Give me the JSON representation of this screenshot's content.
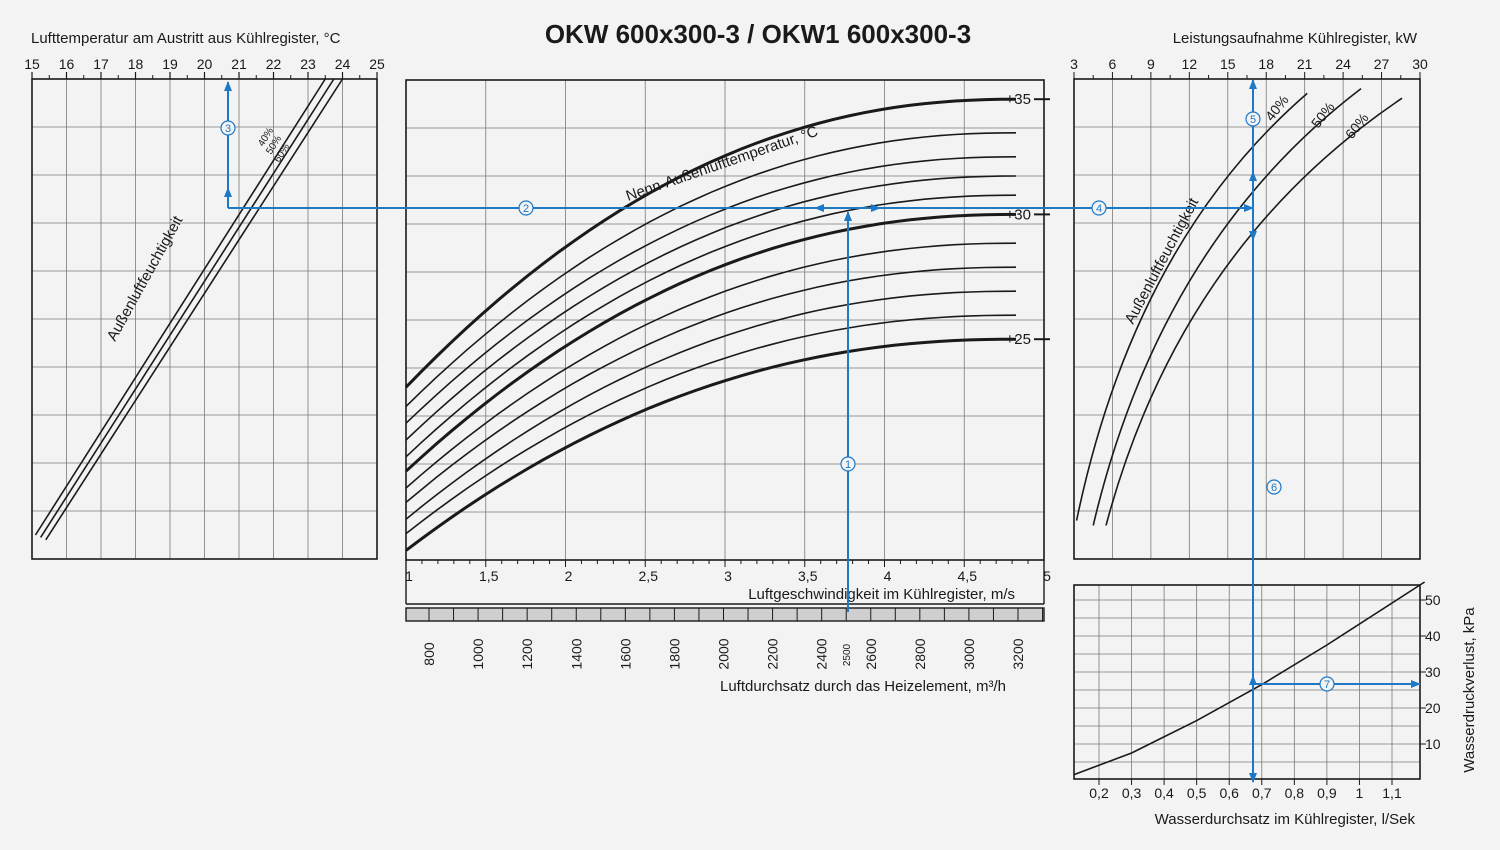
{
  "title": "OKW 600x300-3 / OKW1 600x300-3",
  "colors": {
    "flow": "#1e78c8",
    "lines": "#1a1a1a",
    "grid": "#7a7a7a",
    "background": "#f3f3f3"
  },
  "chart_data": [
    {
      "id": "outlet_temp",
      "type": "line",
      "title": "",
      "xlabel": "Lufttemperatur am Austritt aus Kühlregister, °C",
      "xlim": [
        15,
        25
      ],
      "xticks": [
        "15",
        "16",
        "17",
        "18",
        "19",
        "20",
        "21",
        "22",
        "23",
        "24",
        "25"
      ],
      "curve_label": "Außenluftfeuchtigkeit",
      "series": [
        {
          "name": "40%",
          "values": [
            [
              15.1,
              0.95
            ],
            [
              23.5,
              0.0
            ]
          ]
        },
        {
          "name": "50%",
          "values": [
            [
              15.25,
              0.955
            ],
            [
              23.75,
              0.0
            ]
          ]
        },
        {
          "name": "60%",
          "values": [
            [
              15.4,
              0.96
            ],
            [
              24.0,
              0.0
            ]
          ]
        }
      ]
    },
    {
      "id": "velocity",
      "type": "line",
      "title": "",
      "xlabel": "Luftgeschwindigkeit im Kühlregister, m/s",
      "x2label": "Luftdurchsatz durch das Heizelement, m³/h",
      "xlim": [
        1,
        5
      ],
      "xticks": [
        "1",
        "1,5",
        "2",
        "2,5",
        "3",
        "3,5",
        "4",
        "4,5",
        "5"
      ],
      "x2ticks": [
        "800",
        "1000",
        "1200",
        "1400",
        "1600",
        "1800",
        "2000",
        "2200",
        "2400",
        "2600",
        "2800",
        "3000",
        "3200"
      ],
      "x2_marker": "2500",
      "curve_label": "Nenn-Außenlufttemperatur, °C",
      "series_labels": [
        "+35",
        "+30",
        "+25"
      ],
      "series": [
        {
          "name": "+35",
          "y1": 0.64,
          "y5": 0.04,
          "thick": true
        },
        {
          "name": "",
          "y1": 0.68,
          "y5": 0.11
        },
        {
          "name": "",
          "y1": 0.715,
          "y5": 0.16
        },
        {
          "name": "",
          "y1": 0.75,
          "y5": 0.2
        },
        {
          "name": "",
          "y1": 0.785,
          "y5": 0.24
        },
        {
          "name": "+30",
          "y1": 0.815,
          "y5": 0.28,
          "thick": true
        },
        {
          "name": "",
          "y1": 0.85,
          "y5": 0.34
        },
        {
          "name": "",
          "y1": 0.88,
          "y5": 0.39
        },
        {
          "name": "",
          "y1": 0.915,
          "y5": 0.44
        },
        {
          "name": "",
          "y1": 0.945,
          "y5": 0.49
        },
        {
          "name": "+25",
          "y1": 0.98,
          "y5": 0.54,
          "thick": true
        }
      ]
    },
    {
      "id": "power",
      "type": "line",
      "title": "",
      "xlabel": "Leistungsaufnahme Kühlregister, kW",
      "xlim": [
        3,
        30
      ],
      "xticks": [
        "3",
        "6",
        "9",
        "12",
        "15",
        "18",
        "21",
        "24",
        "27",
        "30"
      ],
      "curve_label": "Außenluftfeuchtigkeit",
      "series": [
        {
          "name": "40%",
          "values": [
            [
              3.2,
              0.92
            ],
            [
              21.2,
              0.03
            ]
          ]
        },
        {
          "name": "50%",
          "values": [
            [
              4.5,
              0.93
            ],
            [
              25.4,
              0.02
            ]
          ]
        },
        {
          "name": "60%",
          "values": [
            [
              5.5,
              0.93
            ],
            [
              28.6,
              0.04
            ]
          ]
        }
      ]
    },
    {
      "id": "water_pressure",
      "type": "line",
      "title": "",
      "xlabel": "Wasserdurchsatz im Kühlregister, l/Sek",
      "ylabel": "Wasserdruckverlust, kPa",
      "xlim": [
        0.12,
        1.2
      ],
      "ylim": [
        0,
        55
      ],
      "xticks": [
        "0,2",
        "0,3",
        "0,4",
        "0,5",
        "0,6",
        "0,7",
        "0,8",
        "0,9",
        "1",
        "1,1"
      ],
      "yticks": [
        "10",
        "20",
        "30",
        "40",
        "50"
      ],
      "series": [
        {
          "name": "",
          "x": [
            0.12,
            0.3,
            0.5,
            0.7,
            0.9,
            1.2
          ],
          "y": [
            1.5,
            7.5,
            16.5,
            26.5,
            37.5,
            55
          ]
        }
      ]
    }
  ],
  "markers": [
    "1",
    "2",
    "3",
    "4",
    "5",
    "6",
    "7"
  ]
}
